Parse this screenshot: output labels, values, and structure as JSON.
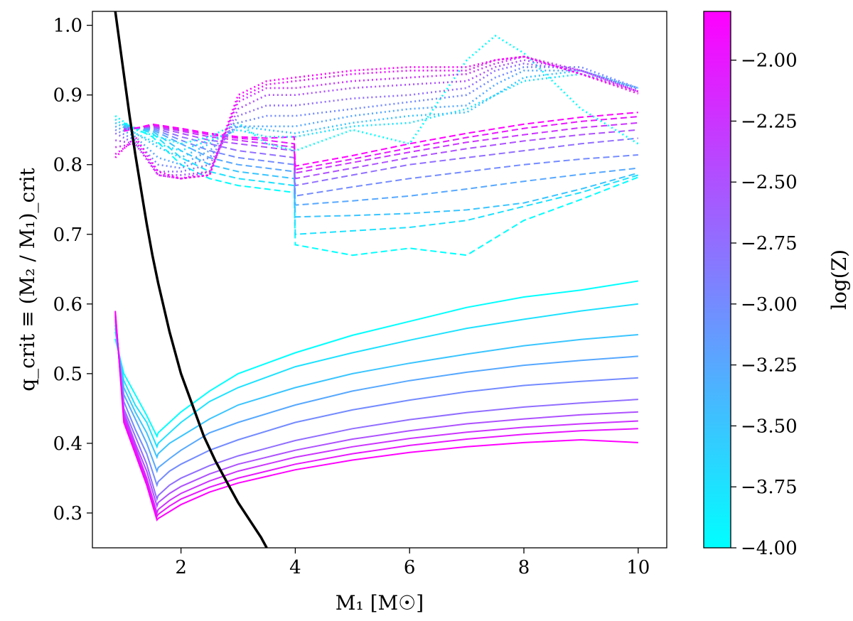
{
  "chart_data": {
    "type": "line",
    "xlabel": "M₁ [M☉]",
    "ylabel": "q_crit ≡ (M₂ / M₁)_crit",
    "xlim": [
      0.45,
      10.5
    ],
    "ylim": [
      0.25,
      1.02
    ],
    "xticks": [
      2,
      4,
      6,
      8,
      10
    ],
    "yticks": [
      0.3,
      0.4,
      0.5,
      0.6,
      0.7,
      0.8,
      0.9,
      1.0
    ],
    "colorbar": {
      "label": "log(Z)",
      "range": [
        -4.0,
        -1.8
      ],
      "ticks": [
        -4.0,
        -3.75,
        -3.5,
        -3.25,
        -3.0,
        -2.75,
        -2.5,
        -2.25,
        -2.0
      ],
      "tick_labels": [
        "−4.00",
        "−3.75",
        "−3.50",
        "−3.25",
        "−3.00",
        "−2.75",
        "−2.50",
        "−2.25",
        "−2.00"
      ],
      "colormap": [
        "#00ffff",
        "#ff00ff"
      ]
    },
    "metallicities": [
      -4.0,
      -3.75,
      -3.5,
      -3.25,
      -3.0,
      -2.75,
      -2.5,
      -2.25,
      -2.0,
      -1.8
    ],
    "solid_series": {
      "style": "solid",
      "x": [
        0.85,
        1.0,
        1.2,
        1.4,
        1.58,
        1.6,
        1.8,
        2.0,
        2.5,
        3.0,
        4.0,
        5.0,
        6.0,
        7.0,
        8.0,
        9.0,
        10.0
      ],
      "values": [
        [
          0.55,
          0.5,
          0.47,
          0.44,
          0.41,
          0.415,
          0.43,
          0.445,
          0.475,
          0.5,
          0.53,
          0.555,
          0.575,
          0.595,
          0.61,
          0.62,
          0.633
        ],
        [
          0.56,
          0.49,
          0.455,
          0.43,
          0.395,
          0.4,
          0.415,
          0.43,
          0.46,
          0.48,
          0.51,
          0.53,
          0.548,
          0.565,
          0.578,
          0.59,
          0.6
        ],
        [
          0.565,
          0.48,
          0.445,
          0.415,
          0.38,
          0.385,
          0.4,
          0.41,
          0.435,
          0.455,
          0.48,
          0.5,
          0.515,
          0.528,
          0.54,
          0.549,
          0.556
        ],
        [
          0.57,
          0.47,
          0.435,
          0.4,
          0.36,
          0.365,
          0.378,
          0.39,
          0.415,
          0.43,
          0.455,
          0.475,
          0.49,
          0.502,
          0.512,
          0.519,
          0.525
        ],
        [
          0.575,
          0.46,
          0.42,
          0.385,
          0.34,
          0.345,
          0.36,
          0.37,
          0.39,
          0.405,
          0.43,
          0.448,
          0.462,
          0.474,
          0.483,
          0.489,
          0.494
        ],
        [
          0.578,
          0.45,
          0.41,
          0.37,
          0.32,
          0.325,
          0.34,
          0.35,
          0.368,
          0.382,
          0.404,
          0.421,
          0.434,
          0.444,
          0.452,
          0.458,
          0.463
        ],
        [
          0.582,
          0.445,
          0.4,
          0.36,
          0.31,
          0.315,
          0.328,
          0.338,
          0.356,
          0.37,
          0.39,
          0.406,
          0.418,
          0.428,
          0.435,
          0.441,
          0.445
        ],
        [
          0.585,
          0.44,
          0.395,
          0.35,
          0.3,
          0.305,
          0.318,
          0.328,
          0.346,
          0.36,
          0.38,
          0.395,
          0.407,
          0.416,
          0.423,
          0.428,
          0.432
        ],
        [
          0.588,
          0.435,
          0.39,
          0.345,
          0.295,
          0.298,
          0.31,
          0.32,
          0.337,
          0.35,
          0.37,
          0.385,
          0.397,
          0.406,
          0.413,
          0.418,
          0.421
        ],
        [
          0.59,
          0.43,
          0.385,
          0.34,
          0.29,
          0.292,
          0.302,
          0.312,
          0.33,
          0.343,
          0.362,
          0.376,
          0.387,
          0.395,
          0.401,
          0.405,
          0.401
        ]
      ]
    },
    "dashed_series": {
      "style": "dashed",
      "x": [
        1.0,
        1.5,
        2.0,
        2.5,
        3.0,
        3.5,
        3.98,
        4.0,
        5.0,
        6.0,
        7.0,
        8.0,
        9.0,
        10.0
      ],
      "values": [
        [
          0.86,
          0.84,
          0.8,
          0.78,
          0.77,
          0.765,
          0.76,
          0.685,
          0.67,
          0.68,
          0.67,
          0.72,
          0.75,
          0.782
        ],
        [
          0.858,
          0.845,
          0.81,
          0.79,
          0.78,
          0.775,
          0.77,
          0.7,
          0.705,
          0.71,
          0.72,
          0.74,
          0.76,
          0.785
        ],
        [
          0.856,
          0.848,
          0.82,
          0.8,
          0.79,
          0.785,
          0.78,
          0.725,
          0.727,
          0.73,
          0.735,
          0.745,
          0.765,
          0.788
        ],
        [
          0.855,
          0.85,
          0.83,
          0.81,
          0.8,
          0.795,
          0.79,
          0.742,
          0.748,
          0.755,
          0.765,
          0.776,
          0.786,
          0.795
        ],
        [
          0.853,
          0.852,
          0.835,
          0.82,
          0.81,
          0.805,
          0.8,
          0.755,
          0.768,
          0.78,
          0.79,
          0.8,
          0.808,
          0.814
        ],
        [
          0.852,
          0.854,
          0.84,
          0.83,
          0.82,
          0.815,
          0.81,
          0.77,
          0.785,
          0.8,
          0.81,
          0.82,
          0.83,
          0.838
        ],
        [
          0.851,
          0.855,
          0.845,
          0.835,
          0.83,
          0.825,
          0.82,
          0.78,
          0.795,
          0.81,
          0.823,
          0.834,
          0.843,
          0.85
        ],
        [
          0.85,
          0.856,
          0.848,
          0.84,
          0.835,
          0.83,
          0.825,
          0.788,
          0.803,
          0.818,
          0.832,
          0.843,
          0.853,
          0.86
        ],
        [
          0.849,
          0.857,
          0.85,
          0.843,
          0.838,
          0.835,
          0.83,
          0.793,
          0.808,
          0.824,
          0.839,
          0.852,
          0.862,
          0.869
        ],
        [
          0.848,
          0.858,
          0.852,
          0.845,
          0.84,
          0.838,
          0.84,
          0.798,
          0.813,
          0.83,
          0.845,
          0.858,
          0.868,
          0.875
        ]
      ]
    },
    "dotted_series": {
      "style": "dotted",
      "x": [
        0.85,
        1.2,
        1.6,
        2.0,
        2.5,
        3.0,
        3.5,
        4.0,
        5.0,
        6.0,
        7.0,
        7.5,
        8.0,
        9.0,
        10.0
      ],
      "values": [
        [
          0.87,
          0.85,
          0.84,
          0.83,
          0.84,
          0.86,
          0.83,
          0.82,
          0.85,
          0.83,
          0.95,
          0.985,
          0.96,
          0.88,
          0.83
        ],
        [
          0.865,
          0.845,
          0.83,
          0.82,
          0.835,
          0.85,
          0.84,
          0.84,
          0.855,
          0.86,
          0.88,
          0.9,
          0.92,
          0.93,
          0.91
        ],
        [
          0.86,
          0.845,
          0.825,
          0.81,
          0.83,
          0.855,
          0.85,
          0.845,
          0.86,
          0.87,
          0.875,
          0.9,
          0.925,
          0.935,
          0.91
        ],
        [
          0.855,
          0.84,
          0.81,
          0.8,
          0.82,
          0.855,
          0.855,
          0.855,
          0.87,
          0.88,
          0.885,
          0.915,
          0.935,
          0.935,
          0.91
        ],
        [
          0.85,
          0.835,
          0.8,
          0.795,
          0.81,
          0.86,
          0.87,
          0.87,
          0.88,
          0.89,
          0.9,
          0.925,
          0.94,
          0.94,
          0.91
        ],
        [
          0.845,
          0.83,
          0.79,
          0.79,
          0.8,
          0.87,
          0.885,
          0.885,
          0.895,
          0.9,
          0.91,
          0.935,
          0.945,
          0.935,
          0.908
        ],
        [
          0.835,
          0.83,
          0.785,
          0.785,
          0.79,
          0.88,
          0.9,
          0.9,
          0.91,
          0.915,
          0.92,
          0.94,
          0.95,
          0.935,
          0.905
        ],
        [
          0.825,
          0.83,
          0.785,
          0.78,
          0.79,
          0.89,
          0.91,
          0.91,
          0.92,
          0.925,
          0.93,
          0.945,
          0.955,
          0.935,
          0.905
        ],
        [
          0.815,
          0.835,
          0.785,
          0.78,
          0.785,
          0.895,
          0.915,
          0.92,
          0.93,
          0.935,
          0.935,
          0.95,
          0.955,
          0.93,
          0.905
        ],
        [
          0.81,
          0.84,
          0.79,
          0.78,
          0.785,
          0.9,
          0.92,
          0.925,
          0.935,
          0.94,
          0.94,
          0.95,
          0.955,
          0.93,
          0.902
        ]
      ]
    },
    "reference_curve": {
      "style": "solid-thick",
      "color": "#000000",
      "x": [
        0.85,
        0.95,
        1.0,
        1.1,
        1.2,
        1.3,
        1.4,
        1.5,
        1.6,
        1.8,
        2.0,
        2.2,
        2.4,
        2.6,
        2.8,
        3.0,
        3.2,
        3.4,
        3.5
      ],
      "values": [
        1.02,
        0.96,
        0.93,
        0.87,
        0.815,
        0.765,
        0.715,
        0.67,
        0.63,
        0.56,
        0.5,
        0.455,
        0.41,
        0.375,
        0.345,
        0.315,
        0.29,
        0.265,
        0.25
      ]
    }
  }
}
